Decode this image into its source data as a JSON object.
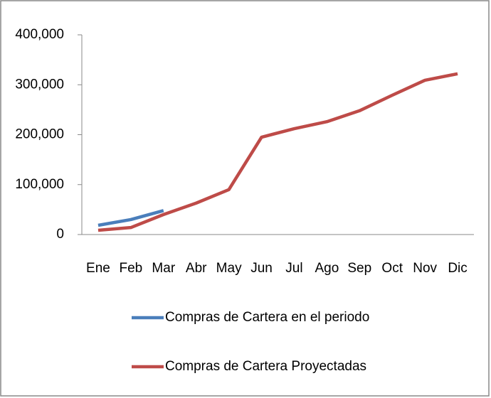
{
  "chart_data": {
    "type": "line",
    "categories": [
      "Ene",
      "Feb",
      "Mar",
      "Abr",
      "May",
      "Jun",
      "Jul",
      "Ago",
      "Sep",
      "Oct",
      "Nov",
      "Dic"
    ],
    "series": [
      {
        "name": "Compras de Cartera en el periodo",
        "color": "#4a7ebb",
        "values": [
          18500,
          30000,
          48000,
          null,
          null,
          null,
          null,
          null,
          null,
          null,
          null,
          null
        ]
      },
      {
        "name": "Compras de Cartera Proyectadas",
        "color": "#be4b48",
        "values": [
          8500,
          14000,
          40000,
          63000,
          90000,
          195000,
          212000,
          226000,
          248000,
          279000,
          309000,
          322000
        ]
      }
    ],
    "ylim": [
      0,
      400000
    ],
    "yticks": [
      0,
      {
        "value": 100000,
        "label": "100,000"
      },
      {
        "value": 200000,
        "label": "200,000"
      },
      {
        "value": 300000,
        "label": "300,000"
      },
      {
        "value": 400000,
        "label": "400,000"
      }
    ],
    "grid": false,
    "legend": "bottom"
  }
}
